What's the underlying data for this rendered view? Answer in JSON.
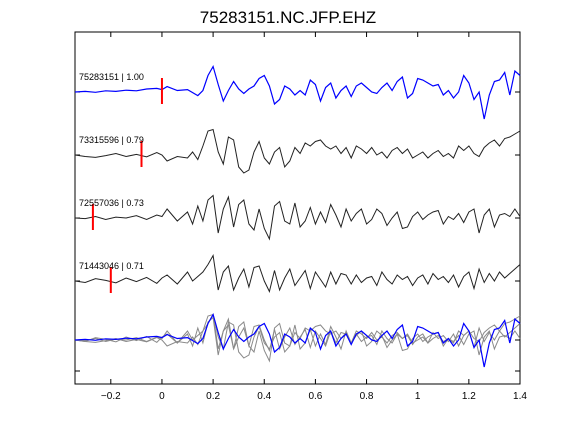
{
  "chart_data": {
    "type": "line",
    "title": "75283151.NC.JFP.EHZ",
    "xlim": [
      -0.34,
      1.4
    ],
    "xticks": [
      -0.2,
      0,
      0.2,
      0.4,
      0.6,
      0.8,
      1,
      1.2,
      1.4
    ],
    "xtick_labels": [
      "−0.2",
      "0",
      "0.2",
      "0.4",
      "0.6",
      "0.8",
      "1",
      "1.2",
      "1.4"
    ],
    "xlabel": "",
    "ylabel": "",
    "grid": false,
    "colors": {
      "primary": "#0000ff",
      "other": "#222222",
      "overlay_other": "#8a8a8a",
      "pick": "#ff0000"
    },
    "series": [
      {
        "name": "75283151 | 1.00",
        "color": "#0000ff",
        "pick_time": 0.0,
        "x": [
          -0.34,
          -0.3,
          -0.26,
          -0.22,
          -0.18,
          -0.14,
          -0.1,
          -0.06,
          -0.02,
          0.0,
          0.02,
          0.06,
          0.1,
          0.14,
          0.16,
          0.18,
          0.2,
          0.22,
          0.24,
          0.26,
          0.28,
          0.3,
          0.32,
          0.34,
          0.36,
          0.38,
          0.4,
          0.42,
          0.44,
          0.46,
          0.48,
          0.5,
          0.52,
          0.54,
          0.56,
          0.58,
          0.6,
          0.62,
          0.64,
          0.66,
          0.68,
          0.7,
          0.72,
          0.74,
          0.76,
          0.78,
          0.8,
          0.82,
          0.84,
          0.86,
          0.88,
          0.9,
          0.92,
          0.94,
          0.96,
          0.98,
          1.0,
          1.02,
          1.04,
          1.06,
          1.08,
          1.1,
          1.12,
          1.14,
          1.16,
          1.18,
          1.2,
          1.22,
          1.24,
          1.26,
          1.28,
          1.3,
          1.32,
          1.34,
          1.36,
          1.38,
          1.4
        ],
        "y": [
          0.0,
          0.02,
          -0.01,
          0.04,
          0.02,
          0.06,
          0.04,
          0.1,
          0.12,
          0.08,
          0.18,
          0.05,
          0.08,
          -0.12,
          0.05,
          0.55,
          0.85,
          0.25,
          -0.3,
          0.05,
          0.35,
          0.1,
          -0.05,
          0.1,
          0.2,
          0.45,
          0.55,
          0.2,
          -0.4,
          -0.25,
          0.2,
          0.1,
          -0.1,
          0.05,
          -0.1,
          0.4,
          0.25,
          -0.3,
          0.15,
          0.3,
          -0.2,
          0.05,
          0.2,
          -0.15,
          0.2,
          0.3,
          0.15,
          0.0,
          -0.05,
          0.15,
          0.3,
          0.05,
          0.35,
          0.5,
          -0.2,
          -0.05,
          0.45,
          0.4,
          0.3,
          0.2,
          0.25,
          -0.1,
          0.05,
          -0.2,
          0.0,
          0.55,
          0.3,
          -0.25,
          0.0,
          -0.9,
          -0.1,
          0.35,
          0.4,
          0.65,
          -0.1,
          0.7,
          0.55
        ]
      },
      {
        "name": "73315596 | 0.79",
        "color": "#222222",
        "pick_time": -0.08,
        "x": [
          -0.34,
          -0.3,
          -0.26,
          -0.22,
          -0.18,
          -0.14,
          -0.1,
          -0.06,
          -0.02,
          0.0,
          0.02,
          0.06,
          0.1,
          0.12,
          0.14,
          0.16,
          0.18,
          0.2,
          0.22,
          0.24,
          0.26,
          0.28,
          0.3,
          0.32,
          0.34,
          0.36,
          0.38,
          0.4,
          0.42,
          0.44,
          0.46,
          0.48,
          0.5,
          0.52,
          0.54,
          0.56,
          0.58,
          0.6,
          0.62,
          0.64,
          0.66,
          0.68,
          0.7,
          0.72,
          0.74,
          0.76,
          0.78,
          0.8,
          0.82,
          0.84,
          0.86,
          0.88,
          0.9,
          0.92,
          0.94,
          0.96,
          0.98,
          1.0,
          1.02,
          1.04,
          1.06,
          1.08,
          1.1,
          1.12,
          1.14,
          1.16,
          1.18,
          1.2,
          1.22,
          1.24,
          1.26,
          1.28,
          1.3,
          1.32,
          1.34,
          1.36,
          1.38,
          1.4
        ],
        "y": [
          0.0,
          -0.05,
          -0.08,
          -0.02,
          0.05,
          -0.05,
          0.02,
          -0.06,
          0.08,
          0.0,
          -0.2,
          -0.05,
          -0.1,
          0.1,
          -0.15,
          0.3,
          0.8,
          0.85,
          0.1,
          -0.3,
          0.6,
          0.5,
          -0.4,
          -0.6,
          -0.5,
          0.1,
          0.45,
          -0.1,
          -0.3,
          0.1,
          0.25,
          -0.4,
          -0.2,
          0.25,
          0.05,
          0.4,
          0.3,
          0.45,
          0.5,
          0.3,
          0.2,
          0.3,
          0.05,
          0.25,
          -0.1,
          0.3,
          0.2,
          0.05,
          0.25,
          0.0,
          0.1,
          -0.1,
          0.15,
          0.25,
          0.05,
          0.2,
          -0.1,
          0.0,
          0.1,
          -0.1,
          0.05,
          0.15,
          -0.05,
          0.05,
          -0.1,
          0.3,
          0.15,
          0.3,
          0.05,
          -0.05,
          0.25,
          0.4,
          0.5,
          0.3,
          0.55,
          0.6,
          0.7,
          0.8
        ]
      },
      {
        "name": "72557036 | 0.73",
        "color": "#222222",
        "pick_time": -0.27,
        "x": [
          -0.34,
          -0.3,
          -0.26,
          -0.22,
          -0.18,
          -0.14,
          -0.1,
          -0.06,
          -0.02,
          0.0,
          0.02,
          0.06,
          0.1,
          0.12,
          0.14,
          0.16,
          0.18,
          0.2,
          0.22,
          0.24,
          0.26,
          0.28,
          0.3,
          0.32,
          0.34,
          0.36,
          0.38,
          0.4,
          0.42,
          0.44,
          0.46,
          0.48,
          0.5,
          0.52,
          0.54,
          0.56,
          0.58,
          0.6,
          0.62,
          0.64,
          0.66,
          0.68,
          0.7,
          0.72,
          0.74,
          0.76,
          0.78,
          0.8,
          0.82,
          0.84,
          0.86,
          0.88,
          0.9,
          0.92,
          0.94,
          0.96,
          0.98,
          1.0,
          1.02,
          1.04,
          1.06,
          1.08,
          1.1,
          1.12,
          1.14,
          1.16,
          1.18,
          1.2,
          1.22,
          1.24,
          1.26,
          1.28,
          1.3,
          1.32,
          1.34,
          1.36,
          1.38,
          1.4
        ],
        "y": [
          0.0,
          -0.02,
          0.05,
          -0.05,
          0.03,
          0.0,
          0.08,
          -0.05,
          0.1,
          0.05,
          0.3,
          -0.1,
          0.2,
          -0.2,
          0.4,
          -0.1,
          0.6,
          0.75,
          -0.5,
          0.3,
          0.7,
          -0.3,
          0.45,
          0.6,
          -0.2,
          -0.4,
          0.3,
          -0.35,
          -0.7,
          0.4,
          0.55,
          -0.1,
          -0.2,
          0.5,
          -0.3,
          -0.1,
          0.35,
          -0.2,
          0.2,
          -0.15,
          0.45,
          0.1,
          -0.3,
          0.3,
          -0.1,
          0.15,
          0.3,
          -0.2,
          -0.05,
          0.3,
          0.15,
          -0.25,
          0.0,
          0.2,
          -0.35,
          -0.3,
          0.05,
          0.2,
          -0.05,
          0.1,
          0.2,
          0.25,
          -0.2,
          0.05,
          -0.05,
          0.15,
          -0.15,
          0.2,
          0.3,
          -0.5,
          0.1,
          0.3,
          -0.3,
          0.1,
          0.15,
          0.05,
          0.3,
          0.05
        ]
      },
      {
        "name": "71443046 | 0.71",
        "color": "#222222",
        "pick_time": -0.2,
        "x": [
          -0.34,
          -0.3,
          -0.26,
          -0.22,
          -0.18,
          -0.14,
          -0.1,
          -0.06,
          -0.02,
          0.0,
          0.02,
          0.06,
          0.1,
          0.12,
          0.14,
          0.16,
          0.18,
          0.2,
          0.22,
          0.24,
          0.26,
          0.28,
          0.3,
          0.32,
          0.34,
          0.36,
          0.38,
          0.4,
          0.42,
          0.44,
          0.46,
          0.48,
          0.5,
          0.52,
          0.54,
          0.56,
          0.58,
          0.6,
          0.62,
          0.64,
          0.66,
          0.68,
          0.7,
          0.72,
          0.74,
          0.76,
          0.78,
          0.8,
          0.82,
          0.84,
          0.86,
          0.88,
          0.9,
          0.92,
          0.94,
          0.96,
          0.98,
          1.0,
          1.02,
          1.04,
          1.06,
          1.08,
          1.1,
          1.12,
          1.14,
          1.16,
          1.18,
          1.2,
          1.22,
          1.24,
          1.26,
          1.28,
          1.3,
          1.32,
          1.34,
          1.36,
          1.38,
          1.4
        ],
        "y": [
          0.0,
          -0.05,
          0.08,
          0.02,
          -0.06,
          0.1,
          -0.02,
          0.12,
          -0.08,
          0.1,
          0.2,
          -0.1,
          0.3,
          0.0,
          0.15,
          0.3,
          0.55,
          0.85,
          -0.3,
          0.3,
          0.5,
          -0.3,
          0.1,
          0.4,
          -0.2,
          0.45,
          0.5,
          0.0,
          -0.35,
          0.35,
          -0.3,
          0.1,
          0.4,
          -0.15,
          0.1,
          0.35,
          -0.25,
          0.3,
          0.05,
          -0.2,
          0.3,
          -0.1,
          0.25,
          0.2,
          -0.1,
          0.2,
          -0.05,
          0.1,
          0.15,
          -0.15,
          0.3,
          0.05,
          -0.1,
          0.2,
          0.05,
          0.15,
          -0.15,
          0.1,
          0.2,
          -0.1,
          0.25,
          0.05,
          0.15,
          -0.05,
          0.2,
          -0.2,
          0.15,
          0.3,
          -0.25,
          0.4,
          -0.05,
          0.25,
          0.0,
          0.3,
          0.1,
          0.25,
          0.4,
          0.55
        ]
      }
    ]
  }
}
